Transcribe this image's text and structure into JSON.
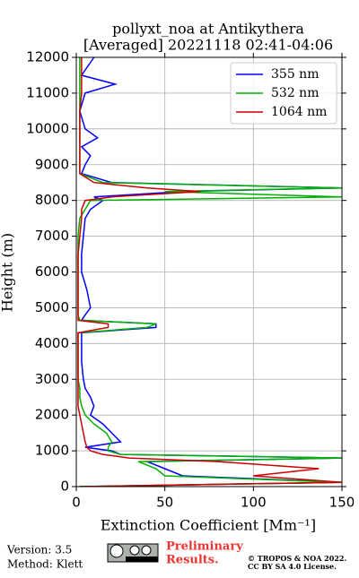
{
  "chart_data": {
    "type": "line",
    "title": "pollyxt_noa at Antikythera",
    "subtitle": "[Averaged] 20221118 02:41-04:06",
    "xlabel": "Extinction Coefficient [Mm⁻¹]",
    "ylabel": "Height (m)",
    "xlim": [
      0,
      150
    ],
    "xticks": [
      0,
      50,
      100,
      150
    ],
    "ylim": [
      0,
      12000
    ],
    "yticks": [
      0,
      1000,
      2000,
      3000,
      4000,
      5000,
      6000,
      7000,
      8000,
      9000,
      10000,
      11000,
      12000
    ],
    "grid": true,
    "legend": "upper right",
    "y": [
      0,
      120,
      300,
      500,
      700,
      800,
      900,
      1000,
      1100,
      1250,
      1500,
      1750,
      2000,
      2250,
      2500,
      2750,
      3000,
      3500,
      4000,
      4300,
      4450,
      4550,
      4650,
      4800,
      5000,
      5500,
      6000,
      6500,
      7000,
      7500,
      7750,
      8000,
      8100,
      8250,
      8350,
      8500,
      8750,
      9000,
      9250,
      9500,
      9750,
      10000,
      10500,
      11000,
      11250,
      11500,
      12000
    ],
    "series": [
      {
        "name": "355 nm",
        "color": "#0000ff",
        "values": [
          2,
          150,
          60,
          50,
          40,
          150,
          25,
          20,
          5,
          25,
          20,
          15,
          8,
          10,
          8,
          5,
          4,
          3,
          3,
          3,
          45,
          45,
          3,
          5,
          8,
          6,
          3,
          3,
          4,
          5,
          8,
          15,
          10,
          60,
          150,
          20,
          3,
          5,
          8,
          3,
          12,
          5,
          2,
          5,
          22,
          3,
          10
        ]
      },
      {
        "name": "532 nm",
        "color": "#00b000",
        "values": [
          2,
          150,
          50,
          45,
          35,
          150,
          25,
          18,
          18,
          20,
          17,
          10,
          5,
          3,
          2,
          2,
          1,
          1,
          1,
          1,
          40,
          45,
          2,
          1,
          1,
          1,
          1,
          1,
          1,
          2,
          5,
          8,
          150,
          50,
          150,
          15,
          2,
          2,
          2,
          2,
          2,
          2,
          2,
          2,
          2,
          2,
          2
        ]
      },
      {
        "name": "1064 nm",
        "color": "#cc0000",
        "values": [
          2,
          150,
          100,
          137,
          80,
          30,
          15,
          8,
          6,
          5,
          4,
          3,
          2,
          1,
          1,
          1,
          1,
          1,
          1,
          1,
          18,
          18,
          1,
          1,
          1,
          1,
          1,
          1,
          2,
          3,
          3,
          5,
          20,
          70,
          40,
          10,
          2,
          2,
          2,
          2,
          2,
          2,
          2,
          3,
          3,
          3,
          3
        ]
      }
    ]
  },
  "footer": {
    "version": "Version: 3.5",
    "method": "Method: Klett",
    "preliminary": "Preliminary",
    "results": "Results.",
    "copyright": "© TROPOS & NOA 2022.",
    "license": "CC BY SA 4.0 License."
  }
}
